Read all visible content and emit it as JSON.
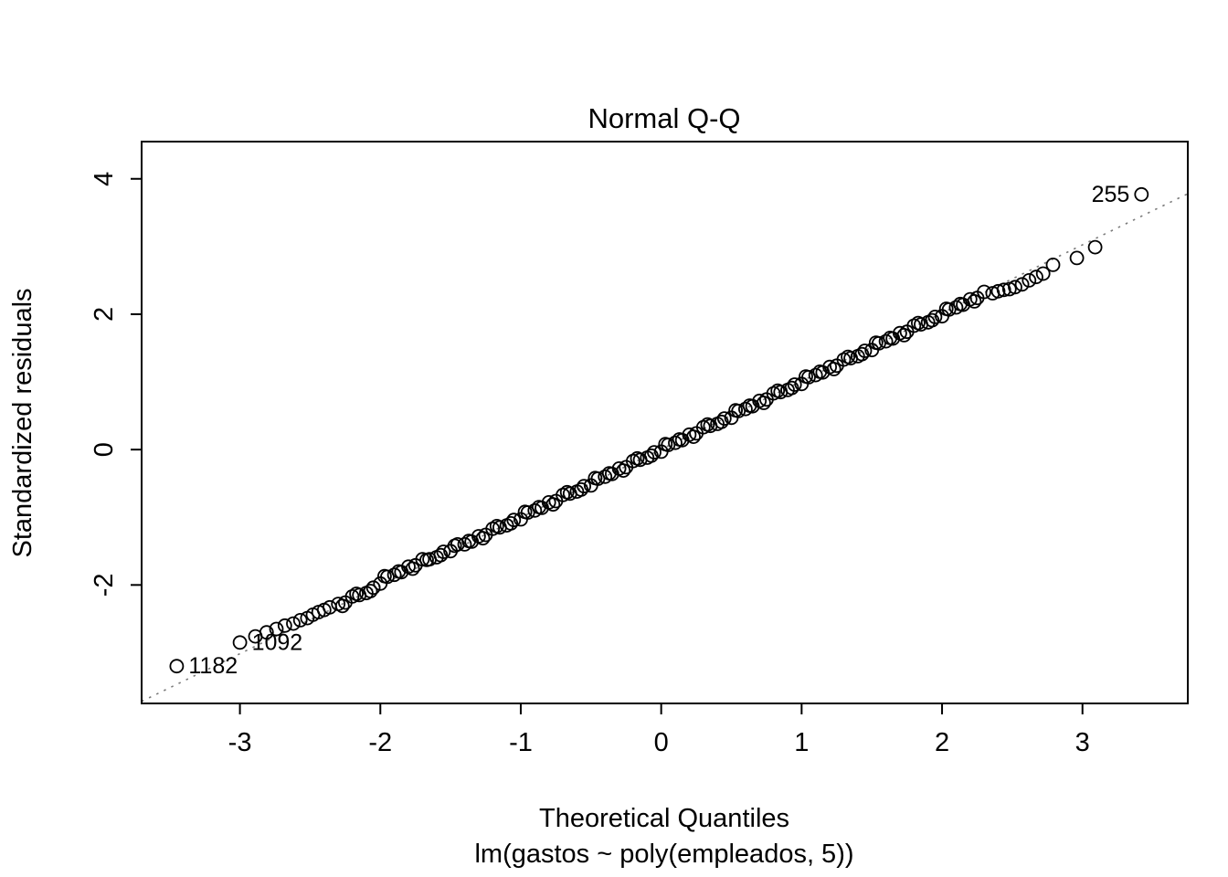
{
  "page": {
    "background": "#ffffff"
  },
  "chart_data": {
    "type": "scatter",
    "title": "Normal Q-Q",
    "xlabel": "Theoretical Quantiles",
    "xlabel_sub": "lm(gastos ~ poly(empleados, 5))",
    "ylabel": "Standardized residuals",
    "xlim": [
      -3.7,
      3.75
    ],
    "ylim": [
      -3.75,
      4.55
    ],
    "xticks": [
      -3,
      -2,
      -1,
      0,
      1,
      2,
      3
    ],
    "yticks": [
      -2,
      0,
      2,
      4
    ],
    "grid": false,
    "legend": "none",
    "point_style": {
      "shape": "open-circle",
      "radius": 7,
      "stroke": "#000000",
      "stroke_width": 1.8,
      "fill": "none"
    },
    "reference_line": {
      "x1": -3.7,
      "y1": -3.72,
      "x2": 3.75,
      "y2": 3.78,
      "style": "dotted",
      "color": "#7a7a7a"
    },
    "labeled_points": [
      {
        "label": "255",
        "x": 3.42,
        "y": 3.77,
        "side": "left"
      },
      {
        "label": "1092",
        "x": -3.0,
        "y": -2.85,
        "side": "right"
      },
      {
        "label": "1182",
        "x": -3.45,
        "y": -3.2,
        "side": "right"
      }
    ],
    "points": [
      [
        -2.89,
        -2.76
      ],
      [
        -2.81,
        -2.7
      ],
      [
        -2.74,
        -2.65
      ],
      [
        -2.68,
        -2.6
      ],
      [
        -2.62,
        -2.57
      ],
      [
        -2.57,
        -2.52
      ],
      [
        -2.52,
        -2.49
      ],
      [
        -2.48,
        -2.44
      ],
      [
        -2.44,
        -2.4
      ],
      [
        -2.4,
        -2.37
      ],
      [
        -2.36,
        -2.33
      ],
      [
        -2.3,
        -2.28
      ],
      [
        -2.25,
        -2.26
      ],
      [
        -2.2,
        -2.17
      ],
      [
        -2.15,
        -2.15
      ],
      [
        -2.1,
        -2.12
      ],
      [
        -2.05,
        -2.04
      ],
      [
        -2.0,
        -1.98
      ],
      [
        -1.95,
        -1.88
      ],
      [
        -1.9,
        -1.85
      ],
      [
        -1.85,
        -1.81
      ],
      [
        -1.8,
        -1.73
      ],
      [
        -1.75,
        -1.71
      ],
      [
        -1.7,
        -1.62
      ],
      [
        -1.65,
        -1.62
      ],
      [
        -1.6,
        -1.59
      ],
      [
        -1.55,
        -1.51
      ],
      [
        -1.5,
        -1.5
      ],
      [
        -1.45,
        -1.4
      ],
      [
        -1.4,
        -1.4
      ],
      [
        -1.35,
        -1.36
      ],
      [
        -1.3,
        -1.28
      ],
      [
        -1.25,
        -1.26
      ],
      [
        -1.2,
        -1.17
      ],
      [
        -1.15,
        -1.15
      ],
      [
        -1.1,
        -1.12
      ],
      [
        -1.05,
        -1.04
      ],
      [
        -1.0,
        -1.03
      ],
      [
        -0.95,
        -0.93
      ],
      [
        -0.9,
        -0.9
      ],
      [
        -0.85,
        -0.86
      ],
      [
        -0.8,
        -0.78
      ],
      [
        -0.75,
        -0.76
      ],
      [
        -0.7,
        -0.67
      ],
      [
        -0.65,
        -0.65
      ],
      [
        -0.6,
        -0.62
      ],
      [
        -0.55,
        -0.54
      ],
      [
        -0.5,
        -0.53
      ],
      [
        -0.45,
        -0.43
      ],
      [
        -0.4,
        -0.4
      ],
      [
        -0.35,
        -0.36
      ],
      [
        -0.3,
        -0.28
      ],
      [
        -0.25,
        -0.26
      ],
      [
        -0.2,
        -0.17
      ],
      [
        -0.15,
        -0.15
      ],
      [
        -0.1,
        -0.12
      ],
      [
        -0.05,
        -0.04
      ],
      [
        0.0,
        -0.03
      ],
      [
        0.05,
        0.07
      ],
      [
        0.1,
        0.1
      ],
      [
        0.15,
        0.14
      ],
      [
        0.2,
        0.22
      ],
      [
        0.25,
        0.24
      ],
      [
        0.3,
        0.33
      ],
      [
        0.35,
        0.35
      ],
      [
        0.4,
        0.38
      ],
      [
        0.45,
        0.46
      ],
      [
        0.5,
        0.47
      ],
      [
        0.55,
        0.57
      ],
      [
        0.6,
        0.6
      ],
      [
        0.65,
        0.64
      ],
      [
        0.7,
        0.72
      ],
      [
        0.75,
        0.74
      ],
      [
        0.8,
        0.83
      ],
      [
        0.85,
        0.85
      ],
      [
        0.9,
        0.88
      ],
      [
        0.95,
        0.96
      ],
      [
        1.0,
        0.97
      ],
      [
        1.05,
        1.07
      ],
      [
        1.1,
        1.1
      ],
      [
        1.15,
        1.14
      ],
      [
        1.2,
        1.22
      ],
      [
        1.25,
        1.24
      ],
      [
        1.3,
        1.33
      ],
      [
        1.35,
        1.35
      ],
      [
        1.4,
        1.38
      ],
      [
        1.45,
        1.46
      ],
      [
        1.5,
        1.47
      ],
      [
        1.55,
        1.57
      ],
      [
        1.6,
        1.6
      ],
      [
        1.65,
        1.64
      ],
      [
        1.7,
        1.72
      ],
      [
        1.75,
        1.74
      ],
      [
        1.8,
        1.83
      ],
      [
        1.85,
        1.85
      ],
      [
        1.9,
        1.88
      ],
      [
        1.95,
        1.96
      ],
      [
        2.0,
        1.97
      ],
      [
        2.05,
        2.07
      ],
      [
        2.1,
        2.1
      ],
      [
        2.15,
        2.14
      ],
      [
        2.2,
        2.22
      ],
      [
        2.25,
        2.24
      ],
      [
        2.3,
        2.33
      ],
      [
        -2.27,
        -2.31
      ],
      [
        -2.17,
        -2.13
      ],
      [
        -2.07,
        -2.09
      ],
      [
        -1.97,
        -1.87
      ],
      [
        -1.87,
        -1.8
      ],
      [
        -1.77,
        -1.76
      ],
      [
        -1.67,
        -1.63
      ],
      [
        -1.57,
        -1.56
      ],
      [
        -1.47,
        -1.42
      ],
      [
        -1.37,
        -1.35
      ],
      [
        -1.27,
        -1.31
      ],
      [
        -1.17,
        -1.13
      ],
      [
        -1.07,
        -1.09
      ],
      [
        -0.97,
        -0.92
      ],
      [
        -0.87,
        -0.85
      ],
      [
        -0.77,
        -0.81
      ],
      [
        -0.67,
        -0.63
      ],
      [
        -0.57,
        -0.59
      ],
      [
        -0.47,
        -0.42
      ],
      [
        -0.37,
        -0.35
      ],
      [
        -0.27,
        -0.31
      ],
      [
        -0.17,
        -0.13
      ],
      [
        -0.07,
        -0.09
      ],
      [
        0.03,
        0.08
      ],
      [
        0.13,
        0.15
      ],
      [
        0.23,
        0.19
      ],
      [
        0.33,
        0.37
      ],
      [
        0.43,
        0.41
      ],
      [
        0.53,
        0.58
      ],
      [
        0.63,
        0.65
      ],
      [
        0.73,
        0.69
      ],
      [
        0.83,
        0.87
      ],
      [
        0.93,
        0.91
      ],
      [
        1.03,
        1.08
      ],
      [
        1.13,
        1.15
      ],
      [
        1.23,
        1.19
      ],
      [
        1.33,
        1.37
      ],
      [
        1.43,
        1.41
      ],
      [
        1.53,
        1.58
      ],
      [
        1.63,
        1.65
      ],
      [
        1.73,
        1.69
      ],
      [
        1.83,
        1.87
      ],
      [
        1.93,
        1.91
      ],
      [
        2.03,
        2.08
      ],
      [
        2.13,
        2.15
      ],
      [
        2.23,
        2.19
      ],
      [
        2.36,
        2.31
      ],
      [
        2.4,
        2.34
      ],
      [
        2.44,
        2.36
      ],
      [
        2.48,
        2.37
      ],
      [
        2.52,
        2.4
      ],
      [
        2.57,
        2.44
      ],
      [
        2.62,
        2.5
      ],
      [
        2.67,
        2.55
      ],
      [
        2.72,
        2.6
      ],
      [
        2.79,
        2.73
      ],
      [
        2.96,
        2.83
      ],
      [
        3.09,
        2.99
      ]
    ]
  }
}
